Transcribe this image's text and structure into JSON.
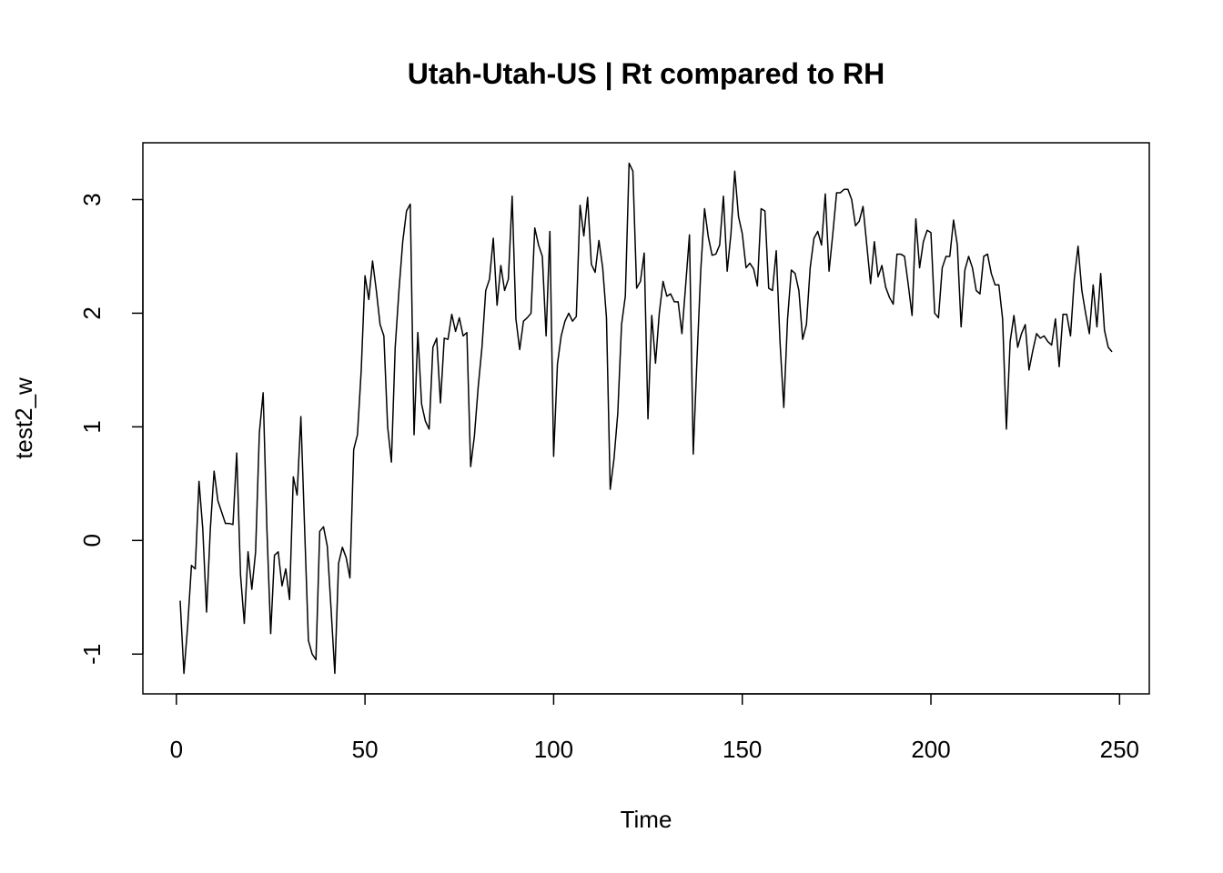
{
  "chart_data": {
    "type": "line",
    "title": "Utah-Utah-US | Rt compared to RH",
    "x_label": "Time",
    "y_label": "test2_w",
    "color": "#000000",
    "x": [
      1,
      2,
      3,
      4,
      5,
      6,
      7,
      8,
      9,
      10,
      11,
      12,
      13,
      14,
      15,
      16,
      17,
      18,
      19,
      20,
      21,
      22,
      23,
      24,
      25,
      26,
      27,
      28,
      29,
      30,
      31,
      32,
      33,
      34,
      35,
      36,
      37,
      38,
      39,
      40,
      41,
      42,
      43,
      44,
      45,
      46,
      47,
      48,
      49,
      50,
      51,
      52,
      53,
      54,
      55,
      56,
      57,
      58,
      59,
      60,
      61,
      62,
      63,
      64,
      65,
      66,
      67,
      68,
      69,
      70,
      71,
      72,
      73,
      74,
      75,
      76,
      77,
      78,
      79,
      80,
      81,
      82,
      83,
      84,
      85,
      86,
      87,
      88,
      89,
      90,
      91,
      92,
      93,
      94,
      95,
      96,
      97,
      98,
      99,
      100,
      101,
      102,
      103,
      104,
      105,
      106,
      107,
      108,
      109,
      110,
      111,
      112,
      113,
      114,
      115,
      116,
      117,
      118,
      119,
      120,
      121,
      122,
      123,
      124,
      125,
      126,
      127,
      128,
      129,
      130,
      131,
      132,
      133,
      134,
      135,
      136,
      137,
      138,
      139,
      140,
      141,
      142,
      143,
      144,
      145,
      146,
      147,
      148,
      149,
      150,
      151,
      152,
      153,
      154,
      155,
      156,
      157,
      158,
      159,
      160,
      161,
      162,
      163,
      164,
      165,
      166,
      167,
      168,
      169,
      170,
      171,
      172,
      173,
      174,
      175,
      176,
      177,
      178,
      179,
      180,
      181,
      182,
      183,
      184,
      185,
      186,
      187,
      188,
      189,
      190,
      191,
      192,
      193,
      194,
      195,
      196,
      197,
      198,
      199,
      200,
      201,
      202,
      203,
      204,
      205,
      206,
      207,
      208,
      209,
      210,
      211,
      212,
      213,
      214,
      215,
      216,
      217,
      218,
      219,
      220,
      221,
      222,
      223,
      224,
      225,
      226,
      227,
      228,
      229,
      230,
      231,
      232,
      233,
      234,
      235,
      236,
      237,
      238,
      239,
      240,
      241,
      242,
      243,
      244,
      245,
      246,
      247,
      248
    ],
    "values": [
      -0.53,
      -1.17,
      -0.75,
      -0.22,
      -0.25,
      0.52,
      0.1,
      -0.63,
      0.1,
      0.61,
      0.35,
      0.25,
      0.15,
      0.15,
      0.14,
      0.77,
      -0.3,
      -0.73,
      -0.1,
      -0.43,
      -0.1,
      0.95,
      1.3,
      0.1,
      -0.82,
      -0.13,
      -0.1,
      -0.4,
      -0.25,
      -0.52,
      0.56,
      0.4,
      1.09,
      0.1,
      -0.88,
      -1.0,
      -1.05,
      0.08,
      0.12,
      -0.05,
      -0.6,
      -1.17,
      -0.2,
      -0.06,
      -0.15,
      -0.33,
      0.8,
      0.93,
      1.5,
      2.33,
      2.12,
      2.46,
      2.2,
      1.9,
      1.8,
      1.0,
      0.69,
      1.7,
      2.2,
      2.63,
      2.9,
      2.96,
      0.93,
      1.83,
      1.2,
      1.05,
      0.98,
      1.7,
      1.78,
      1.21,
      1.78,
      1.77,
      1.99,
      1.84,
      1.96,
      1.8,
      1.83,
      0.65,
      0.92,
      1.35,
      1.7,
      2.2,
      2.3,
      2.66,
      2.07,
      2.42,
      2.2,
      2.3,
      3.03,
      1.95,
      1.68,
      1.93,
      1.96,
      2.0,
      2.75,
      2.6,
      2.5,
      1.8,
      2.72,
      0.74,
      1.55,
      1.8,
      1.93,
      2.0,
      1.93,
      1.97,
      2.95,
      2.68,
      3.02,
      2.43,
      2.36,
      2.64,
      2.4,
      1.96,
      0.45,
      0.72,
      1.12,
      1.9,
      2.15,
      3.32,
      3.25,
      2.22,
      2.28,
      2.53,
      1.07,
      1.98,
      1.56,
      2.0,
      2.28,
      2.15,
      2.17,
      2.1,
      2.1,
      1.82,
      2.25,
      2.69,
      0.76,
      1.6,
      2.38,
      2.92,
      2.67,
      2.51,
      2.52,
      2.6,
      3.03,
      2.37,
      2.7,
      3.25,
      2.85,
      2.7,
      2.4,
      2.44,
      2.39,
      2.24,
      2.92,
      2.9,
      2.22,
      2.2,
      2.55,
      1.75,
      1.17,
      1.95,
      2.38,
      2.35,
      2.2,
      1.77,
      1.9,
      2.4,
      2.66,
      2.72,
      2.6,
      3.05,
      2.37,
      2.7,
      3.06,
      3.06,
      3.09,
      3.09,
      3.0,
      2.77,
      2.81,
      2.94,
      2.6,
      2.26,
      2.63,
      2.32,
      2.42,
      2.23,
      2.14,
      2.08,
      2.52,
      2.52,
      2.5,
      2.25,
      1.98,
      2.83,
      2.4,
      2.63,
      2.73,
      2.71,
      2.0,
      1.96,
      2.4,
      2.5,
      2.5,
      2.82,
      2.6,
      1.88,
      2.38,
      2.5,
      2.4,
      2.2,
      2.17,
      2.5,
      2.52,
      2.35,
      2.25,
      2.25,
      1.95,
      0.98,
      1.75,
      1.98,
      1.7,
      1.82,
      1.9,
      1.5,
      1.67,
      1.82,
      1.78,
      1.8,
      1.75,
      1.72,
      1.95,
      1.53,
      1.99,
      1.99,
      1.8,
      2.3,
      2.59,
      2.2,
      2.0,
      1.82,
      2.25,
      1.88,
      2.35,
      1.85,
      1.7,
      1.66
    ],
    "xlim": [
      -8.88,
      257.88
    ],
    "ylim": [
      -1.35,
      3.5
    ],
    "xticks": [
      0,
      50,
      100,
      150,
      200,
      250
    ],
    "yticks": [
      -1,
      0,
      1,
      2,
      3
    ]
  }
}
